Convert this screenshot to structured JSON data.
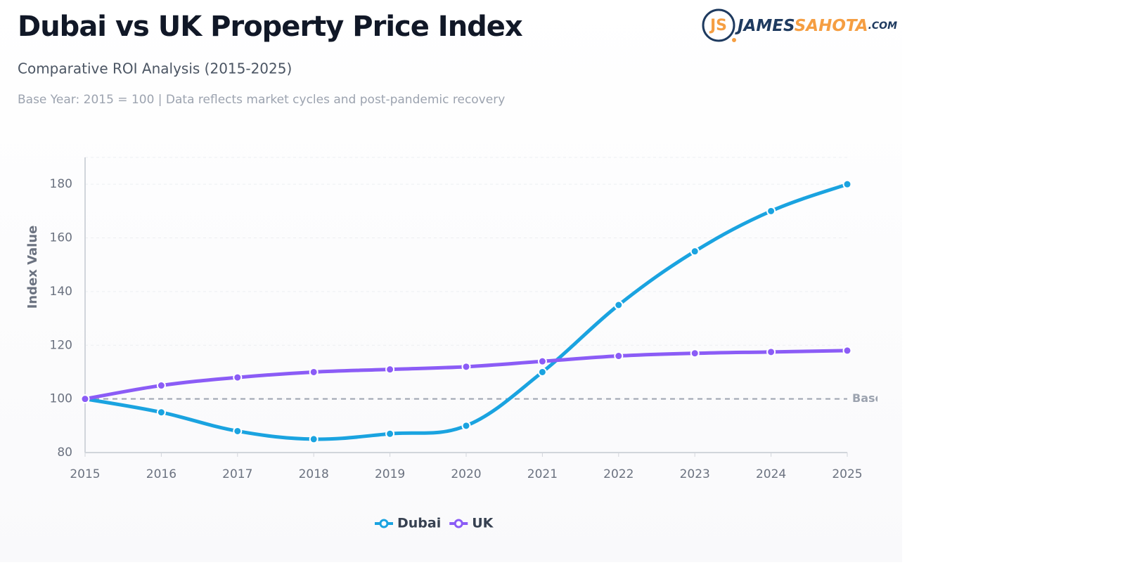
{
  "chart_data": {
    "type": "line",
    "title": "Dubai vs UK Property Price Index",
    "subtitle": "Comparative ROI Analysis (2015-2025)",
    "note": "Base Year: 2015 = 100 | Data reflects market cycles and post-pandemic recovery",
    "y_label": "Index Value",
    "x": [
      2015,
      2016,
      2017,
      2018,
      2019,
      2020,
      2021,
      2022,
      2023,
      2024,
      2025
    ],
    "series": [
      {
        "name": "Dubai",
        "color": "#1aa3e0",
        "values": [
          100,
          95,
          88,
          85,
          87,
          90,
          110,
          135,
          155,
          170,
          180
        ]
      },
      {
        "name": "UK",
        "color": "#8b5cf6",
        "values": [
          100,
          105,
          108,
          110,
          111,
          112,
          114,
          116,
          117,
          117.5,
          118
        ]
      }
    ],
    "xlim": [
      2015,
      2025
    ],
    "xticks": [
      2015,
      2016,
      2017,
      2018,
      2019,
      2020,
      2021,
      2022,
      2023,
      2024,
      2025
    ],
    "ylim": [
      80,
      190
    ],
    "yticks": [
      80,
      100,
      120,
      140,
      160,
      180
    ],
    "grid": true,
    "reference_line": {
      "value": 100,
      "label": "Base"
    },
    "legend": "bottom"
  },
  "logo": {
    "first": "JAMES",
    "second": "SAHOTA",
    "suffix": ".COM"
  }
}
